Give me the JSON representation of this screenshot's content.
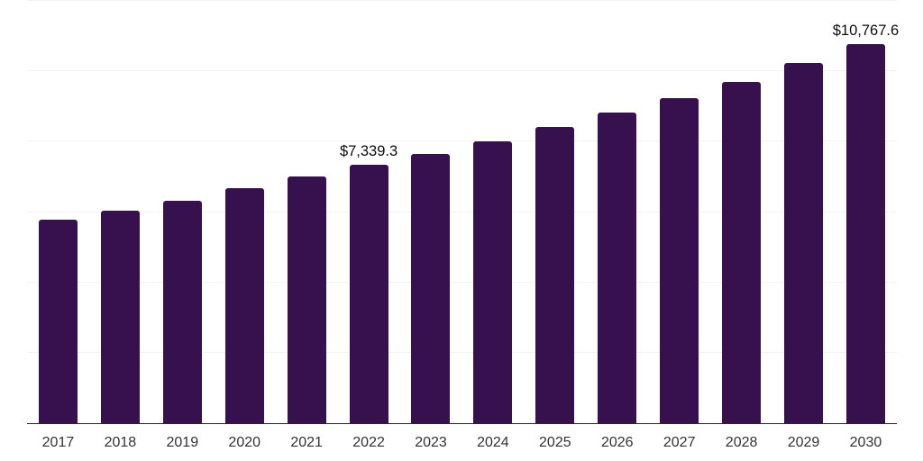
{
  "chart_data": {
    "type": "bar",
    "title": "",
    "xlabel": "",
    "ylabel": "",
    "categories": [
      "2017",
      "2018",
      "2019",
      "2020",
      "2021",
      "2022",
      "2023",
      "2024",
      "2025",
      "2026",
      "2027",
      "2028",
      "2029",
      "2030"
    ],
    "values": [
      5780,
      6040,
      6330,
      6690,
      7020,
      7339.3,
      7660,
      8020,
      8410,
      8830,
      9240,
      9700,
      10230,
      10767.6
    ],
    "point_labels": [
      "",
      "",
      "",
      "",
      "",
      "$7,339.3",
      "",
      "",
      "",
      "",
      "",
      "",
      "",
      "$10,767.6"
    ],
    "ylim": [
      0,
      12000
    ],
    "gridline_interval": 2000,
    "grid": true,
    "legend": "none",
    "y_axis_labels_visible": false,
    "colors": {
      "bar": "#37114e",
      "gridline": "#f2f2f2",
      "axis_line": "#262626",
      "tick_label": "#333333",
      "value_label": "#0d0d0d",
      "background": "#ffffff"
    }
  }
}
